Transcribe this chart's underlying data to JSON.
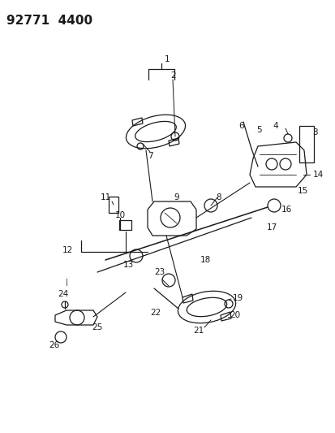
{
  "title": "92771  4400",
  "bg_color": "#ffffff",
  "line_color": "#1a1a1a",
  "title_fontsize": 11,
  "label_fontsize": 7.5,
  "figsize": [
    4.14,
    5.33
  ],
  "dpi": 100
}
